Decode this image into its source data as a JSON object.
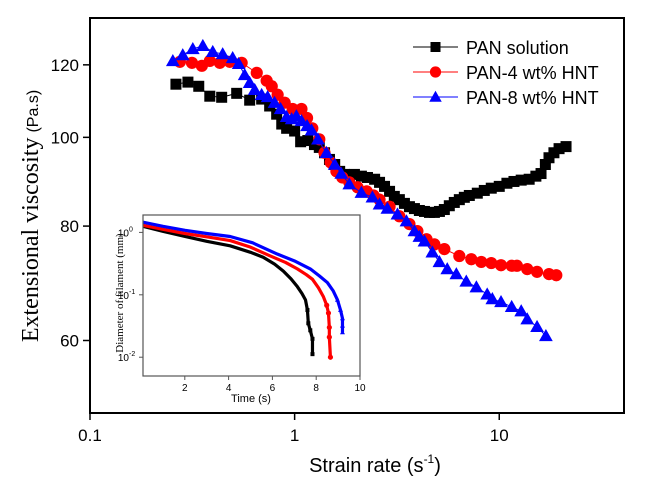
{
  "chart_data": [
    {
      "id": "main",
      "type": "scatter",
      "title": "",
      "xlabel": "Strain rate (s",
      "xlabel_sup": "-1",
      "xlabel_close": ")",
      "ylabel": "Extensional viscosity",
      "ylabel_unit": "(Pa.s)",
      "xscale": "log",
      "yscale": "log",
      "xlim": [
        0.1,
        40.7
      ],
      "ylim": [
        50,
        135
      ],
      "xticks": [
        0.1,
        1,
        10
      ],
      "xtick_labels": [
        "0.1",
        "1",
        "10"
      ],
      "yticks": [
        60,
        80,
        100,
        120
      ],
      "ytick_labels": [
        "60",
        "80",
        "100",
        "120"
      ],
      "grid": false,
      "legend_position": "top-right",
      "series": [
        {
          "name": "PAN solution",
          "marker": "square",
          "color": "#000000",
          "x": [
            0.263,
            0.301,
            0.34,
            0.385,
            0.44,
            0.521,
            0.603,
            0.69,
            0.755,
            0.817,
            0.865,
            0.914,
            1.0,
            1.07,
            1.16,
            1.25,
            1.32,
            1.4,
            1.48,
            1.57,
            1.66,
            1.75,
            1.85,
            1.96,
            2.12,
            2.27,
            2.46,
            2.6,
            2.75,
            2.91,
            3.07,
            3.25,
            3.44,
            3.64,
            3.85,
            4.07,
            4.31,
            4.56,
            4.82,
            5.1,
            5.39,
            5.7,
            6.03,
            6.38,
            6.75,
            7.14,
            7.81,
            8.45,
            9.14,
            10.0,
            10.9,
            11.8,
            12.8,
            14.0,
            15.1,
            16.0,
            16.8,
            17.5,
            18.5,
            19.6,
            21.2
          ],
          "y": [
            114.3,
            114.9,
            113.7,
            110.9,
            110.6,
            111.7,
            109.8,
            110.1,
            108.2,
            106.0,
            103.4,
            102.3,
            101.6,
            98.9,
            99.2,
            98.2,
            97.5,
            96.2,
            94.6,
            93.4,
            91.8,
            91.1,
            90.9,
            91.1,
            90.7,
            90.4,
            90.0,
            89.3,
            88.4,
            87.3,
            86.2,
            85.5,
            84.7,
            84.0,
            83.6,
            83.2,
            83.0,
            82.8,
            82.8,
            83.0,
            83.4,
            84.2,
            84.9,
            85.5,
            86.0,
            86.4,
            86.9,
            87.5,
            88.0,
            88.4,
            89.1,
            89.5,
            89.8,
            90.0,
            90.7,
            91.3,
            93.4,
            95.0,
            96.2,
            97.2,
            97.7
          ]
        },
        {
          "name": "PAN-4 wt% HNT",
          "marker": "circle",
          "color": "#ff0000",
          "x": [
            0.275,
            0.315,
            0.352,
            0.385,
            0.431,
            0.482,
            0.551,
            0.653,
            0.73,
            0.773,
            0.826,
            0.894,
            0.978,
            1.08,
            1.15,
            1.22,
            1.32,
            1.4,
            1.5,
            1.6,
            1.71,
            1.85,
            2.03,
            2.25,
            2.43,
            2.6,
            2.91,
            3.25,
            3.64,
            3.98,
            4.41,
            4.82,
            5.39,
            6.38,
            7.3,
            8.17,
            9.14,
            10.2,
            11.5,
            12.2,
            13.7,
            15.3,
            17.5,
            19.0
          ],
          "y": [
            120.9,
            120.6,
            119.7,
            121.2,
            120.6,
            120.9,
            120.6,
            117.6,
            115.3,
            113.7,
            111.3,
            109.1,
            107.4,
            107.4,
            105.0,
            102.3,
            99.5,
            96.2,
            93.9,
            91.8,
            90.4,
            89.3,
            88.2,
            87.3,
            86.4,
            85.5,
            84.0,
            82.0,
            80.4,
            79.0,
            77.4,
            76.4,
            75.5,
            74.2,
            73.6,
            73.1,
            72.9,
            72.5,
            72.4,
            72.4,
            71.8,
            71.3,
            70.9,
            70.7
          ]
        },
        {
          "name": "PAN-8 wt% HNT",
          "marker": "triangle",
          "color": "#0000ff",
          "x": [
            0.254,
            0.284,
            0.318,
            0.356,
            0.398,
            0.445,
            0.498,
            0.533,
            0.57,
            0.603,
            0.638,
            0.69,
            0.738,
            0.798,
            0.854,
            0.914,
            0.967,
            1.02,
            1.08,
            1.15,
            1.21,
            1.3,
            1.43,
            1.57,
            1.69,
            1.85,
            2.12,
            2.4,
            2.6,
            2.84,
            3.18,
            3.52,
            3.85,
            4.07,
            4.31,
            4.71,
            5.1,
            5.57,
            6.17,
            6.9,
            7.73,
            8.73,
            9.25,
            10.2,
            11.5,
            12.8,
            13.7,
            15.3,
            16.9
          ],
          "y": [
            121.2,
            123.0,
            124.9,
            125.9,
            124.0,
            123.3,
            122.1,
            120.3,
            117.0,
            114.7,
            112.7,
            111.3,
            110.7,
            109.1,
            107.4,
            105.3,
            104.7,
            105.5,
            104.2,
            102.9,
            101.8,
            99.5,
            96.2,
            93.4,
            91.3,
            88.9,
            87.0,
            86.0,
            84.5,
            83.6,
            82.4,
            81.0,
            79.0,
            77.9,
            77.0,
            74.9,
            73.1,
            71.8,
            70.9,
            69.6,
            68.6,
            67.4,
            66.6,
            66.1,
            65.3,
            64.6,
            63.3,
            62.1,
            60.7
          ]
        }
      ]
    },
    {
      "id": "inset",
      "type": "line",
      "title": "",
      "xlabel": "Time (s)",
      "ylabel": "Diameter of filament (mm)",
      "xscale": "linear",
      "yscale": "log",
      "xlim": [
        0,
        10
      ],
      "ylim": [
        0.005,
        1.9
      ],
      "xticks": [
        2,
        4,
        6,
        8,
        10
      ],
      "xtick_labels": [
        "2",
        "4",
        "6",
        "8",
        "10"
      ],
      "yticks": [
        0.01,
        0.1,
        1
      ],
      "ytick_labels": [
        {
          "base": "10",
          "exp": "-2"
        },
        {
          "base": "10",
          "exp": "-1"
        },
        {
          "base": "10",
          "exp": "0"
        }
      ],
      "grid": false,
      "series": [
        {
          "name": "PAN solution",
          "color": "#000000",
          "marker": "square",
          "x": [
            0.09,
            1.0,
            2.01,
            3.0,
            4.07,
            5.0,
            5.58,
            6.1,
            6.5,
            6.85,
            7.14,
            7.35,
            7.51,
            7.6,
            7.64,
            7.73,
            7.83,
            7.83
          ],
          "y": [
            1.25,
            1.04,
            0.86,
            0.72,
            0.61,
            0.48,
            0.4,
            0.31,
            0.24,
            0.18,
            0.135,
            0.105,
            0.083,
            0.057,
            0.035,
            0.027,
            0.0197,
            0.0112
          ]
        },
        {
          "name": "PAN-4 wt% HNT",
          "color": "#ff0000",
          "marker": "circle",
          "x": [
            0.09,
            1.0,
            2.01,
            3.0,
            4.07,
            5.0,
            5.9,
            6.6,
            7.14,
            7.55,
            7.83,
            8.1,
            8.33,
            8.48,
            8.56,
            8.6,
            8.6,
            8.65
          ],
          "y": [
            1.3,
            1.12,
            0.96,
            0.85,
            0.74,
            0.58,
            0.42,
            0.33,
            0.26,
            0.21,
            0.177,
            0.13,
            0.093,
            0.068,
            0.051,
            0.03,
            0.021,
            0.01
          ]
        },
        {
          "name": "PAN-8 wt% HNT",
          "color": "#0000ff",
          "marker": "triangle",
          "x": [
            0.09,
            1.0,
            2.01,
            3.0,
            4.07,
            5.1,
            6.22,
            7.0,
            7.73,
            8.15,
            8.51,
            8.78,
            8.97,
            9.11,
            9.2,
            9.2,
            9.2
          ],
          "y": [
            1.46,
            1.25,
            1.08,
            0.96,
            0.86,
            0.68,
            0.45,
            0.35,
            0.26,
            0.2,
            0.157,
            0.115,
            0.083,
            0.057,
            0.042,
            0.032,
            0.025
          ]
        }
      ]
    }
  ]
}
